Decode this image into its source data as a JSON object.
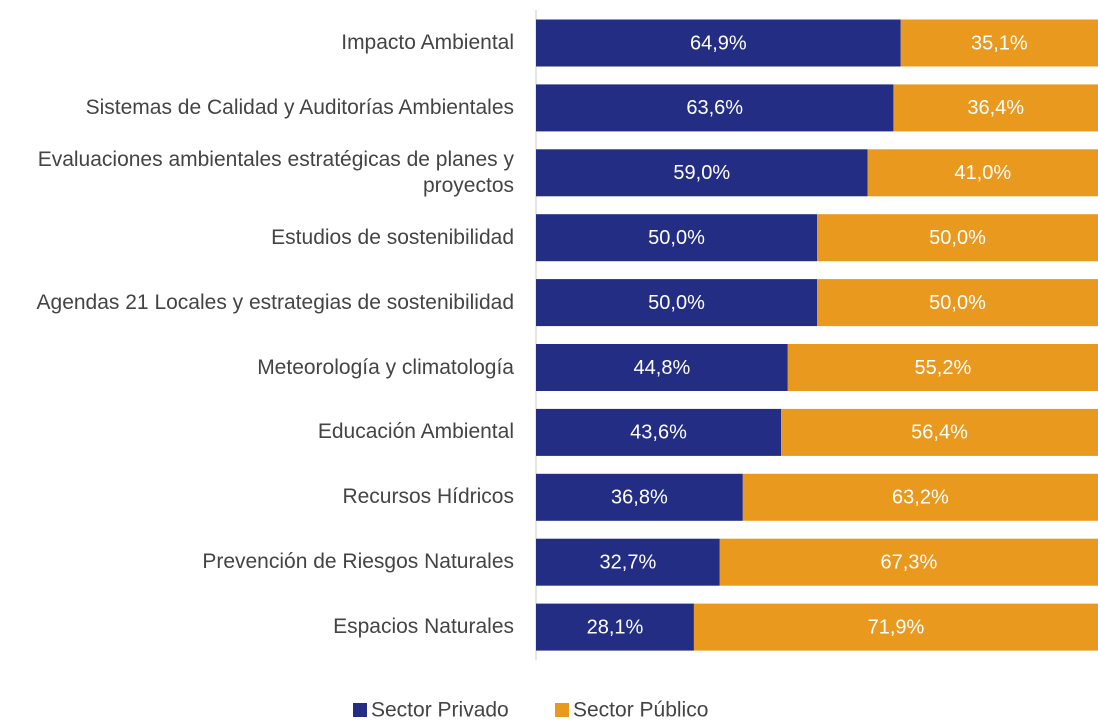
{
  "chart_data": {
    "type": "bar",
    "orientation": "horizontal",
    "stacked": true,
    "categories": [
      "Impacto Ambiental",
      "Sistemas de Calidad y Auditorías Ambientales",
      "Evaluaciones ambientales estratégicas de planes y proyectos",
      "Estudios de sostenibilidad",
      "Agendas 21 Locales y estrategias de sostenibilidad",
      "Meteorología y climatología",
      "Educación Ambiental",
      "Recursos Hídricos",
      "Prevención de Riesgos Naturales",
      "Espacios Naturales"
    ],
    "series": [
      {
        "name": "Sector Privado",
        "color": "#232d84",
        "values": [
          64.9,
          63.6,
          59.0,
          50.0,
          50.0,
          44.8,
          43.6,
          36.8,
          32.7,
          28.1
        ],
        "value_labels": [
          "64,9%",
          "63,6%",
          "59,0%",
          "50,0%",
          "50,0%",
          "44,8%",
          "43,6%",
          "36,8%",
          "32,7%",
          "28,1%"
        ]
      },
      {
        "name": "Sector Público",
        "color": "#e9991e",
        "values": [
          35.1,
          36.4,
          41.0,
          50.0,
          50.0,
          55.2,
          56.4,
          63.2,
          67.3,
          71.9
        ],
        "value_labels": [
          "35,1%",
          "36,4%",
          "41,0%",
          "50,0%",
          "50,0%",
          "55,2%",
          "56,4%",
          "63,2%",
          "67,3%",
          "71,9%"
        ]
      }
    ],
    "xlim": [
      0,
      100
    ],
    "legend": "bottom"
  }
}
